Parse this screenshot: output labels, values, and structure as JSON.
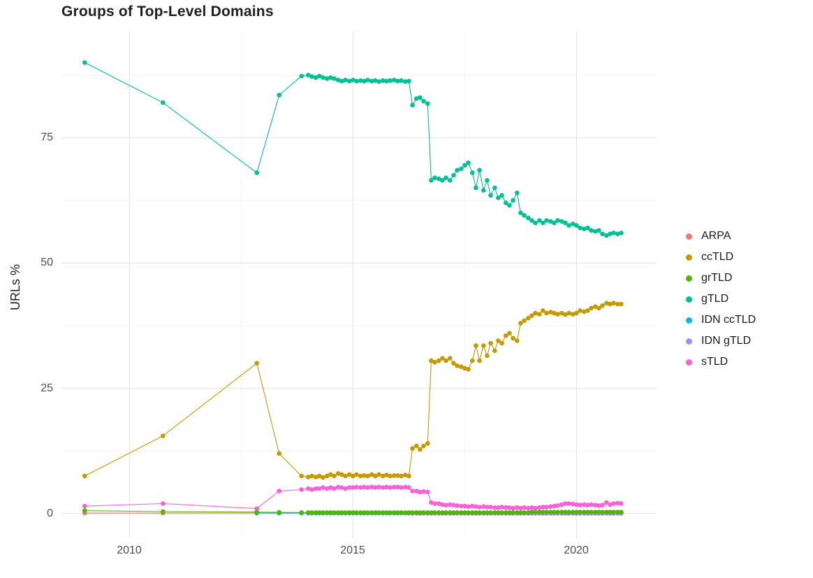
{
  "chart_data": {
    "type": "line",
    "title": "Groups of Top-Level Domains",
    "xlabel": "",
    "ylabel": "URLs %",
    "legend_position": "right",
    "grid": true,
    "x_tick_labels": [
      "2010",
      "2015",
      "2020"
    ],
    "x_tick_values": [
      2010,
      2015,
      2020
    ],
    "y_tick_labels": [
      "0",
      "25",
      "50",
      "75"
    ],
    "y_tick_values": [
      0,
      25,
      50,
      75
    ],
    "x_minor": [
      2012.5,
      2017.5
    ],
    "y_minor": [
      12.5,
      37.5,
      62.5,
      87.5
    ],
    "xlim": [
      2008.48,
      2021.79
    ],
    "ylim": [
      -4.9,
      96.2
    ],
    "x": [
      2009.0,
      2010.75,
      2012.85,
      2013.35,
      2013.85,
      2014.0,
      2014.08,
      2014.17,
      2014.25,
      2014.33,
      2014.42,
      2014.5,
      2014.58,
      2014.67,
      2014.75,
      2014.83,
      2014.92,
      2015.0,
      2015.08,
      2015.17,
      2015.25,
      2015.33,
      2015.42,
      2015.5,
      2015.58,
      2015.67,
      2015.75,
      2015.83,
      2015.92,
      2016.0,
      2016.08,
      2016.17,
      2016.25,
      2016.33,
      2016.42,
      2016.5,
      2016.58,
      2016.67,
      2016.75,
      2016.83,
      2016.92,
      2017.0,
      2017.08,
      2017.17,
      2017.25,
      2017.33,
      2017.42,
      2017.5,
      2017.58,
      2017.67,
      2017.75,
      2017.83,
      2017.92,
      2018.0,
      2018.08,
      2018.17,
      2018.25,
      2018.33,
      2018.42,
      2018.5,
      2018.58,
      2018.67,
      2018.75,
      2018.83,
      2018.92,
      2019.0,
      2019.08,
      2019.17,
      2019.25,
      2019.33,
      2019.42,
      2019.5,
      2019.58,
      2019.67,
      2019.75,
      2019.83,
      2019.92,
      2020.0,
      2020.08,
      2020.17,
      2020.25,
      2020.33,
      2020.42,
      2020.5,
      2020.58,
      2020.67,
      2020.75,
      2020.83,
      2020.92,
      2021.0
    ],
    "series": [
      {
        "name": "ARPA",
        "color": "#F8766D",
        "values": [
          0.1,
          0.1,
          0.1,
          0.1,
          0.1,
          0.1,
          0.1,
          0.1,
          0.1,
          0.1,
          0.1,
          0.1,
          0.1,
          0.1,
          0.1,
          0.1,
          0.1,
          0.1,
          0.1,
          0.1,
          0.1,
          0.1,
          0.1,
          0.1,
          0.1,
          0.1,
          0.1,
          0.1,
          0.1,
          0.1,
          0.1,
          0.1,
          0.1,
          0.1,
          0.1,
          0.1,
          0.1,
          0.1,
          0.1,
          0.1,
          0.1,
          0.1,
          0.1,
          0.1,
          0.1,
          0.1,
          0.1,
          0.1,
          0.1,
          0.1,
          0.1,
          0.1,
          0.1,
          0.1,
          0.1,
          0.1,
          0.1,
          0.1,
          0.1,
          0.1,
          0.1,
          0.1,
          0.1,
          0.1,
          0.1,
          0.1,
          0.1,
          0.1,
          0.1,
          0.1,
          0.1,
          0.1,
          0.1,
          0.1,
          0.1,
          0.1,
          0.1,
          0.1,
          0.1,
          0.1,
          0.1,
          0.1,
          0.1,
          0.1,
          0.1,
          0.1,
          0.1,
          0.1,
          0.1,
          0.1
        ]
      },
      {
        "name": "ccTLD",
        "color": "#C49A00",
        "values": [
          7.5,
          15.5,
          30,
          12,
          7.5,
          7.3,
          7.5,
          7.3,
          7.5,
          7.2,
          7.5,
          7.8,
          7.5,
          8,
          7.8,
          7.5,
          7.8,
          7.5,
          7.8,
          7.5,
          7.6,
          7.5,
          7.8,
          7.5,
          7.8,
          7.5,
          7.7,
          7.5,
          7.6,
          7.6,
          7.5,
          7.7,
          7.5,
          13,
          13.5,
          12.8,
          13.5,
          14,
          30.5,
          30.2,
          30.5,
          31,
          30.5,
          31,
          30,
          29.5,
          29.3,
          29,
          28.8,
          30.5,
          33.5,
          30.5,
          33.5,
          31.5,
          34,
          32.5,
          34.5,
          34,
          35.5,
          36,
          35,
          34.5,
          38,
          38.5,
          39,
          39.5,
          40,
          39.8,
          40.5,
          40,
          40.2,
          40,
          39.8,
          40,
          39.7,
          40,
          39.8,
          40,
          40.5,
          40.3,
          40.5,
          41,
          41.3,
          41,
          41.5,
          42,
          41.8,
          42,
          41.8,
          41.8
        ]
      },
      {
        "name": "grTLD",
        "color": "#53B400",
        "values": [
          0.6,
          0.4,
          0.3,
          0.25,
          0.2,
          0.2,
          0.2,
          0.2,
          0.2,
          0.2,
          0.2,
          0.2,
          0.2,
          0.2,
          0.2,
          0.2,
          0.2,
          0.2,
          0.2,
          0.2,
          0.2,
          0.2,
          0.2,
          0.2,
          0.2,
          0.2,
          0.2,
          0.2,
          0.2,
          0.2,
          0.2,
          0.2,
          0.2,
          0.2,
          0.2,
          0.2,
          0.2,
          0.2,
          0.2,
          0.2,
          0.2,
          0.2,
          0.2,
          0.2,
          0.2,
          0.2,
          0.2,
          0.2,
          0.2,
          0.2,
          0.2,
          0.2,
          0.2,
          0.2,
          0.2,
          0.2,
          0.2,
          0.2,
          0.2,
          0.2,
          0.2,
          0.2,
          0.2,
          0.2,
          0.2,
          0.3,
          0.3,
          0.3,
          0.3,
          0.3,
          0.3,
          0.3,
          0.3,
          0.3,
          0.3,
          0.3,
          0.3,
          0.3,
          0.3,
          0.3,
          0.3,
          0.3,
          0.3,
          0.3,
          0.3,
          0.3,
          0.3,
          0.3,
          0.3,
          0.3
        ]
      },
      {
        "name": "gTLD",
        "color": "#00C094",
        "values": [
          90,
          82,
          68,
          83.5,
          87.3,
          87.5,
          87.2,
          87,
          87.3,
          87,
          86.8,
          87,
          86.8,
          86.5,
          86.3,
          86.5,
          86.3,
          86.5,
          86.3,
          86.4,
          86.3,
          86.5,
          86.3,
          86.4,
          86.2,
          86.4,
          86.3,
          86.4,
          86.5,
          86.3,
          86.4,
          86.2,
          86.3,
          81.5,
          82.8,
          83,
          82.3,
          81.8,
          66.5,
          67,
          66.8,
          66.5,
          67,
          66.5,
          67.5,
          68.5,
          68.8,
          69.5,
          70,
          68,
          65,
          68.5,
          64.5,
          66.5,
          63.5,
          65,
          63,
          63.5,
          62,
          61.5,
          62.5,
          64,
          60,
          59.5,
          59,
          58.5,
          58,
          58.5,
          58,
          58.5,
          58.3,
          58,
          58.5,
          58.3,
          58,
          57.5,
          57.8,
          57.5,
          57,
          56.8,
          57,
          56.5,
          56.3,
          56.5,
          55.8,
          55.5,
          55.8,
          56,
          55.8,
          56
        ]
      },
      {
        "name": "IDN ccTLD",
        "color": "#00B6EB",
        "values": [
          null,
          null,
          0.1,
          0.1,
          0.1,
          0.1,
          0.1,
          0.1,
          0.1,
          0.1,
          0.1,
          0.1,
          0.1,
          0.1,
          0.1,
          0.1,
          0.1,
          0.1,
          0.1,
          0.1,
          0.1,
          0.1,
          0.1,
          0.1,
          0.1,
          0.1,
          0.1,
          0.1,
          0.1,
          0.1,
          0.1,
          0.1,
          0.1,
          0.1,
          0.1,
          0.1,
          0.1,
          0.1,
          0.1,
          0.1,
          0.1,
          0.1,
          0.1,
          0.1,
          0.1,
          0.1,
          0.1,
          0.1,
          0.1,
          0.1,
          0.1,
          0.1,
          0.1,
          0.1,
          0.1,
          0.1,
          0.1,
          0.1,
          0.1,
          0.1,
          0.1,
          0.1,
          0.1,
          0.1,
          0.1,
          0.1,
          0.1,
          0.1,
          0.1,
          0.1,
          0.1,
          0.1,
          0.1,
          0.1,
          0.1,
          0.1,
          0.1,
          0.1,
          0.1,
          0.1,
          0.1,
          0.1,
          0.1,
          0.1,
          0.1,
          0.1,
          0.1,
          0.1,
          0.1,
          0.1
        ]
      },
      {
        "name": "IDN gTLD",
        "color": "#A58AFF",
        "values": [
          null,
          null,
          null,
          null,
          null,
          null,
          null,
          null,
          null,
          null,
          null,
          null,
          null,
          null,
          null,
          null,
          null,
          null,
          null,
          null,
          null,
          null,
          null,
          null,
          null,
          null,
          null,
          null,
          null,
          null,
          null,
          null,
          null,
          0.05,
          0.05,
          0.05,
          0.05,
          0.05,
          0.05,
          0.05,
          0.05,
          0.05,
          0.05,
          0.05,
          0.05,
          0.05,
          0.05,
          0.05,
          0.05,
          0.05,
          0.05,
          0.05,
          0.05,
          0.05,
          0.05,
          0.05,
          0.05,
          0.05,
          0.05,
          0.05,
          0.05,
          0.05,
          0.05,
          0.05,
          0.05,
          0.05,
          0.05,
          0.05,
          0.05,
          0.05,
          0.05,
          0.05,
          0.05,
          0.05,
          0.05,
          0.05,
          0.05,
          0.05,
          0.05,
          0.05,
          0.05,
          0.05,
          0.05,
          0.05,
          0.05,
          0.05,
          0.05,
          0.05,
          0.05,
          0.05
        ]
      },
      {
        "name": "sTLD",
        "color": "#FB61D7",
        "values": [
          1.5,
          2,
          1,
          4.5,
          4.8,
          5,
          4.8,
          5,
          5,
          5.2,
          5,
          5.2,
          5,
          5.3,
          5.2,
          5,
          5.2,
          5.2,
          5.3,
          5.2,
          5.3,
          5.2,
          5.3,
          5.2,
          5.3,
          5.2,
          5.3,
          5.2,
          5.3,
          5.3,
          5.2,
          5.3,
          5.2,
          4.5,
          4.5,
          4.3,
          4.4,
          4.3,
          2.2,
          2,
          2,
          1.8,
          1.7,
          1.8,
          1.7,
          1.6,
          1.5,
          1.5,
          1.4,
          1.5,
          1.4,
          1.3,
          1.4,
          1.3,
          1.3,
          1.2,
          1.2,
          1.3,
          1.2,
          1.2,
          1.1,
          1.2,
          1.1,
          1.2,
          1.1,
          1.2,
          1.1,
          1.2,
          1.3,
          1.3,
          1.4,
          1.5,
          1.6,
          1.8,
          2,
          2,
          1.9,
          1.8,
          1.7,
          1.8,
          1.7,
          1.8,
          1.7,
          1.6,
          1.7,
          2.2,
          1.8,
          2,
          2.1,
          2
        ]
      }
    ]
  }
}
